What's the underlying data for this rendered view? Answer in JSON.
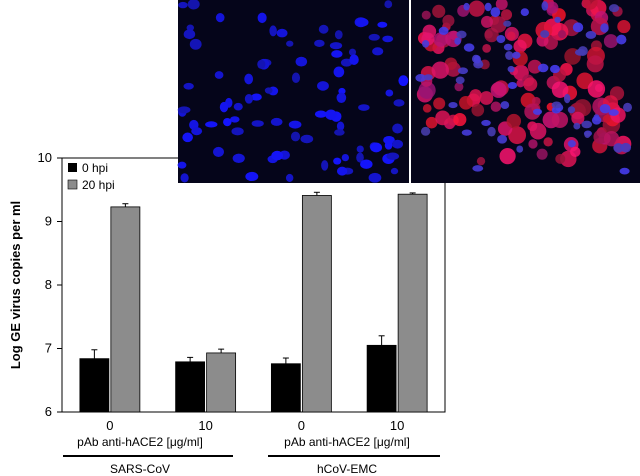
{
  "chart_data": {
    "type": "bar",
    "title": "",
    "xlabel": "",
    "ylabel": "Log GE virus copies per ml",
    "ylim": [
      6,
      10
    ],
    "yticks": [
      "6",
      "7",
      "8",
      "9",
      "10"
    ],
    "categories": [
      "0",
      "10",
      "0",
      "10"
    ],
    "group_labels": [
      {
        "sublabel": "pAb anti-hACE2 [μg/ml]",
        "label": "SARS-CoV"
      },
      {
        "sublabel": "pAb anti-hACE2 [μg/ml]",
        "label": "hCoV-EMC"
      }
    ],
    "series": [
      {
        "name": "0 hpi",
        "color": "#000000",
        "values": [
          6.84,
          6.79,
          6.76,
          7.05
        ],
        "errors": [
          0.14,
          0.07,
          0.09,
          0.15
        ]
      },
      {
        "name": "20 hpi",
        "color": "#8c8c8c",
        "values": [
          9.23,
          6.93,
          9.41,
          9.43
        ],
        "errors": [
          0.05,
          0.06,
          0.05,
          0.02
        ]
      }
    ],
    "legend_position": "top-left",
    "grid": false
  },
  "inset": {
    "description_panels": [
      "nuclei-stained cells (blue)",
      "nuclei plus red-stained cells"
    ]
  }
}
